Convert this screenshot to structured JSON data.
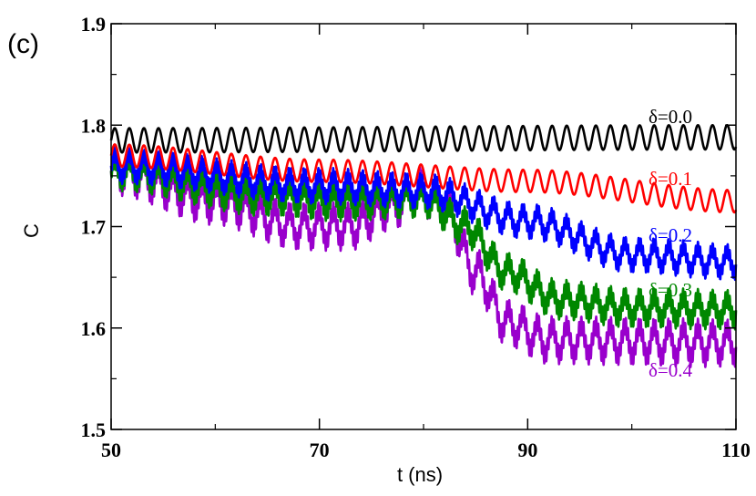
{
  "panel_label": "(c)",
  "chart_data": {
    "type": "line",
    "title": "",
    "xlabel": "t (ns)",
    "ylabel": "C",
    "xlim": [
      50,
      110
    ],
    "ylim": [
      1.5,
      1.9
    ],
    "xticks": [
      50,
      70,
      90,
      110
    ],
    "xtick_labels": [
      "50",
      "70",
      "90",
      "110"
    ],
    "yticks": [
      1.5,
      1.6,
      1.7,
      1.8,
      1.9
    ],
    "ytick_labels": [
      "1.5",
      "1.6",
      "1.7",
      "1.8",
      "1.9"
    ],
    "grid": false,
    "legend": "inline labels at right end of each curve",
    "series": [
      {
        "name": "δ=0.0",
        "color": "#000000",
        "oscillation_amplitude": 0.012,
        "oscillation_period_ns": 1.4,
        "fast_noise_amplitude": 0.0,
        "baseline": [
          [
            50,
            1.785
          ],
          [
            110,
            1.788
          ]
        ]
      },
      {
        "name": "δ=0.1",
        "color": "#ff0000",
        "oscillation_amplitude": 0.011,
        "oscillation_period_ns": 1.4,
        "fast_noise_amplitude": 0.0,
        "baseline": [
          [
            50,
            1.77
          ],
          [
            70,
            1.755
          ],
          [
            90,
            1.745
          ],
          [
            110,
            1.725
          ]
        ]
      },
      {
        "name": "δ=0.2",
        "color": "#0000ff",
        "oscillation_amplitude": 0.011,
        "oscillation_period_ns": 1.4,
        "fast_noise_amplitude": 0.007,
        "baseline": [
          [
            50,
            1.76
          ],
          [
            70,
            1.74
          ],
          [
            80,
            1.735
          ],
          [
            90,
            1.705
          ],
          [
            100,
            1.672
          ],
          [
            110,
            1.665
          ]
        ]
      },
      {
        "name": "δ=0.3",
        "color": "#008800",
        "oscillation_amplitude": 0.011,
        "oscillation_period_ns": 1.4,
        "fast_noise_amplitude": 0.009,
        "baseline": [
          [
            50,
            1.755
          ],
          [
            65,
            1.73
          ],
          [
            72,
            1.725
          ],
          [
            80,
            1.728
          ],
          [
            84,
            1.7
          ],
          [
            88,
            1.655
          ],
          [
            93,
            1.628
          ],
          [
            100,
            1.62
          ],
          [
            110,
            1.618
          ]
        ]
      },
      {
        "name": "δ=0.4",
        "color": "#9900cc",
        "oscillation_amplitude": 0.015,
        "oscillation_period_ns": 1.4,
        "fast_noise_amplitude": 0.009,
        "baseline": [
          [
            50,
            1.755
          ],
          [
            60,
            1.725
          ],
          [
            68,
            1.7
          ],
          [
            73,
            1.7
          ],
          [
            77,
            1.72
          ],
          [
            79.5,
            1.735
          ],
          [
            82,
            1.72
          ],
          [
            85,
            1.655
          ],
          [
            88,
            1.605
          ],
          [
            92,
            1.588
          ],
          [
            110,
            1.585
          ]
        ]
      }
    ]
  }
}
